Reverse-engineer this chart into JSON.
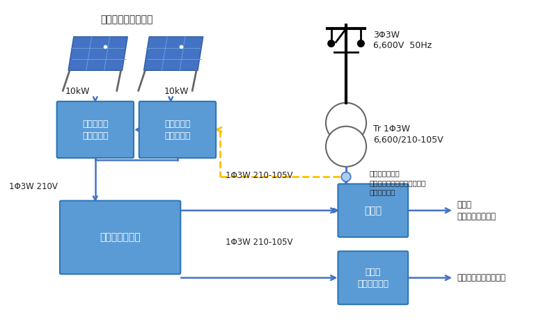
{
  "bg_color": "#ffffff",
  "box_color": "#5b9bd5",
  "box_edge_color": "#2e75b6",
  "box_text_color": "#ffffff",
  "arrow_color": "#4472c4",
  "dashed_arrow_color": "#ffc000",
  "text_color": "#1f1f1f",
  "title_text": "太陽電池モジュール",
  "pc1_label": "パワーコン\nディショナ",
  "pc2_label": "パワーコン\nディショナ",
  "bat_label": "蓄電池システム",
  "den_label": "電灯盤",
  "bou_label": "防災用\nコンセント盤",
  "label_10kw_1": "10kW",
  "label_10kw_2": "10kW",
  "label_1phi_210": "1Φ3W 210V",
  "label_1phi_den": "1Φ3W 210-105V",
  "label_1phi_bou": "1Φ3W 210-105V",
  "label_3phi": "3Φ3W\n6,600V  50Hz",
  "label_tr": "Tr 1Φ3W\n6,600/210-105V",
  "label_relay": "逆流検知継電器\n（逆流検知でパワーコンディ\nショナ停止）",
  "label_load": "負荷へ\n（校内照明など）",
  "label_outlet": "盤内コンセントに供給"
}
